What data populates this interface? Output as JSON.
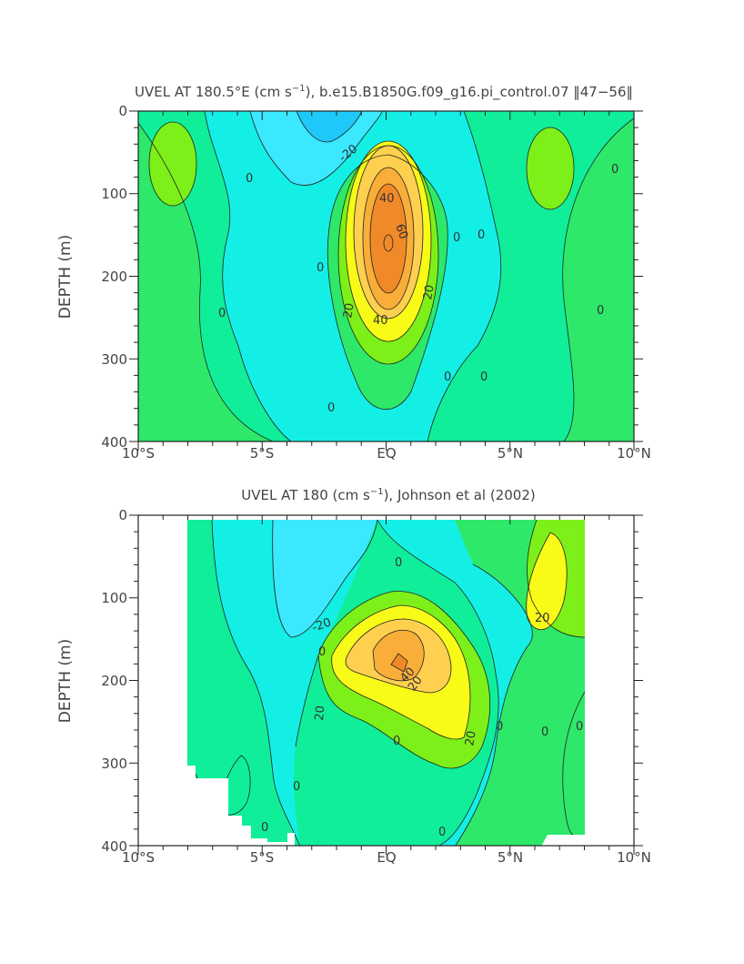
{
  "colors": {
    "lt_minus20": "#1ec8f8",
    "m20_m10": "#3ae8ff",
    "m10_0": "#14efe6",
    "0_10": "#10ee9a",
    "10_20": "#2ee86a",
    "20_30": "#7cf018",
    "30_40": "#f8fa18",
    "40_50": "#ffd050",
    "50_60": "#f8ae38",
    "gt_60": "#f08a28"
  },
  "chart_data": [
    {
      "type": "contour",
      "title": "UVEL AT 180.5°E (cm s⁻¹), b.e15.B1850G.f09_g16.pi_control.07 ‖47–56‖",
      "title_parts": {
        "prefix": "UVEL AT 180.5°E (cm s",
        "superscript": "−1",
        "suffix": "), b.e15.B1850G.f09_g16.pi_control.07 ‖47−56‖"
      },
      "xlabel": "",
      "ylabel": "DEPTH (m)",
      "xlim": [
        -10,
        10
      ],
      "ylim": [
        400,
        0
      ],
      "x_ticks": [
        -10,
        -5,
        0,
        5,
        10
      ],
      "x_tick_labels": [
        "10°S",
        "5°S",
        "EQ",
        "5°N",
        "10°N"
      ],
      "y_ticks": [
        0,
        100,
        200,
        300,
        400
      ],
      "y_tick_labels": [
        "0",
        "100",
        "200",
        "300",
        "400"
      ],
      "contour_interval": 10,
      "contour_labels": [
        "-20",
        "0",
        "0",
        "0",
        "0",
        "0",
        "0",
        "0",
        "0",
        "20",
        "20",
        "40",
        "40",
        "60"
      ],
      "features": [
        {
          "name": "core maximum",
          "lat": 0,
          "depth": 160,
          "value": 60
        },
        {
          "name": "surface minimum",
          "lat": -1.8,
          "depth": 0,
          "value": -25
        },
        {
          "name": "eastward cell west",
          "lat": -8.8,
          "depth": 60,
          "value": 10
        },
        {
          "name": "eastward cell east",
          "lat": 6.5,
          "depth": 75,
          "value": 10
        }
      ]
    },
    {
      "type": "contour",
      "title": "UVEL AT 180 (cm s⁻¹), Johnson et al (2002)",
      "title_parts": {
        "prefix": "UVEL AT 180 (cm s",
        "superscript": "−1",
        "suffix": "), Johnson et al (2002)"
      },
      "xlabel": "",
      "ylabel": "DEPTH (m)",
      "xlim": [
        -10,
        10
      ],
      "ylim": [
        400,
        0
      ],
      "x_ticks": [
        -10,
        -5,
        0,
        5,
        10
      ],
      "x_tick_labels": [
        "10°S",
        "5°S",
        "EQ",
        "5°N",
        "10°N"
      ],
      "y_ticks": [
        0,
        100,
        200,
        300,
        400
      ],
      "y_tick_labels": [
        "0",
        "100",
        "200",
        "300",
        "400"
      ],
      "contour_interval": 10,
      "data_range_lat": [
        -8,
        8
      ],
      "contour_labels": [
        "-20",
        "0",
        "0",
        "0",
        "0",
        "0",
        "0",
        "0",
        "0",
        "0",
        "20",
        "20",
        "20",
        "20",
        "40"
      ],
      "features": [
        {
          "name": "core maximum",
          "lat": 0.6,
          "depth": 170,
          "value": 55
        },
        {
          "name": "surface minimum",
          "lat": -2.2,
          "depth": 50,
          "value": -25
        },
        {
          "name": "northern maximum",
          "lat": 6.5,
          "depth": 80,
          "value": 25
        }
      ]
    }
  ]
}
